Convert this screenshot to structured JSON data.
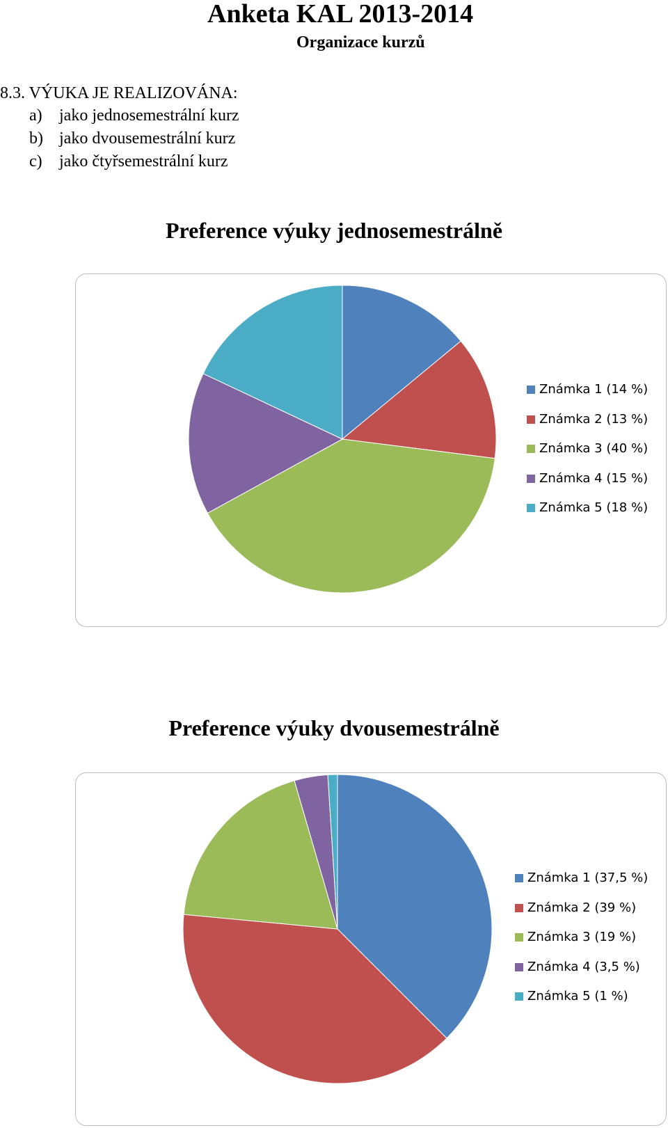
{
  "document": {
    "title": "Anketa KAL 2013-2014",
    "subtitle": "Organizace kurzů"
  },
  "question": {
    "heading": "8.3. VÝUKA JE REALIZOVÁNA:",
    "options": [
      {
        "letter": "a)",
        "text": "jako jednosemestrální kurz"
      },
      {
        "letter": "b)",
        "text": "jako dvousemestrální kurz"
      },
      {
        "letter": "c)",
        "text": "jako čtyřsemestrální kurz"
      }
    ]
  },
  "chart_data": [
    {
      "type": "pie",
      "title": "Preference výuky jednosemestrálně",
      "categories": [
        "Známka 1",
        "Známka 2",
        "Známka 3",
        "Známka 4",
        "Známka 5"
      ],
      "values": [
        14,
        13,
        40,
        15,
        18
      ],
      "unit": "%",
      "legend_labels": [
        "Známka 1 (14 %)",
        "Známka 2 (13 %)",
        "Známka 3 (40 %)",
        "Známka 4 (15 %)",
        "Známka 5 (18 %)"
      ],
      "colors": [
        "#4f81bd",
        "#c0504d",
        "#9bbb59",
        "#8064a2",
        "#4bacc6"
      ],
      "legend_position": "right"
    },
    {
      "type": "pie",
      "title": "Preference výuky dvousemestrálně",
      "categories": [
        "Známka 1",
        "Známka 2",
        "Známka 3",
        "Známka 4",
        "Známka 5"
      ],
      "values": [
        37.5,
        39,
        19,
        3.5,
        1
      ],
      "unit": "%",
      "legend_labels": [
        "Známka 1 (37,5 %)",
        "Známka 2 (39 %)",
        "Známka 3 (19 %)",
        "Známka 4 (3,5 %)",
        "Známka 5 (1 %)"
      ],
      "colors": [
        "#4f81bd",
        "#c0504d",
        "#9bbb59",
        "#8064a2",
        "#4bacc6"
      ],
      "legend_position": "right"
    }
  ]
}
